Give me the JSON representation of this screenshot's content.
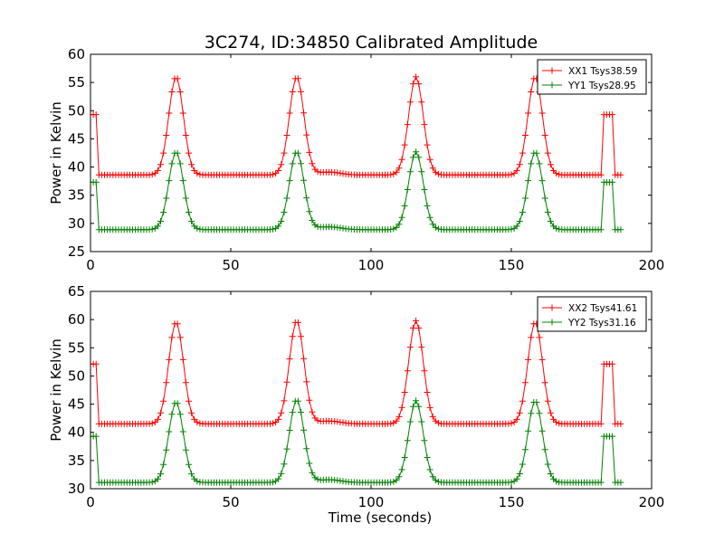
{
  "title": "3C274, ID:34850 Calibrated Amplitude",
  "xlabel": "Time (seconds)",
  "chart_data": [
    {
      "type": "line",
      "title": "3C274, ID:34850 Calibrated Amplitude",
      "xlabel": "",
      "ylabel": "Power in Kelvin",
      "xlim": [
        0,
        200
      ],
      "ylim": [
        25,
        60
      ],
      "xticks": [
        0,
        50,
        100,
        150,
        200
      ],
      "yticks": [
        25,
        30,
        35,
        40,
        45,
        50,
        55,
        60
      ],
      "grid": false,
      "legend": "top-right",
      "series": [
        {
          "name": "XX1 Tsys38.59",
          "color": "#ff0000",
          "marker": "+",
          "baseline": 38.6,
          "peaks": [
            {
              "x": 30.5,
              "y": 56.0
            },
            {
              "x": 73.5,
              "y": 56.0
            },
            {
              "x": 116.0,
              "y": 56.0
            },
            {
              "x": 158.5,
              "y": 56.0
            }
          ],
          "bump": {
            "x": 85,
            "y": 39.1
          },
          "plateaus": [
            {
              "x0": 0,
              "x1": 2.5,
              "y": 49.3
            },
            {
              "x0": 183,
              "x1": 186,
              "y": 49.3
            }
          ],
          "x_end": 189
        },
        {
          "name": "YY1 Tsys28.95",
          "color": "#008000",
          "marker": "+",
          "baseline": 28.9,
          "peaks": [
            {
              "x": 30.5,
              "y": 42.7
            },
            {
              "x": 73.5,
              "y": 42.7
            },
            {
              "x": 116.0,
              "y": 42.7
            },
            {
              "x": 158.5,
              "y": 42.7
            }
          ],
          "bump": {
            "x": 85,
            "y": 29.4
          },
          "plateaus": [
            {
              "x0": 0,
              "x1": 2.5,
              "y": 37.3
            },
            {
              "x0": 183,
              "x1": 186,
              "y": 37.3
            }
          ],
          "x_end": 189
        }
      ]
    },
    {
      "type": "line",
      "xlabel": "Time (seconds)",
      "ylabel": "Power in Kelvin",
      "xlim": [
        0,
        200
      ],
      "ylim": [
        30,
        65
      ],
      "xticks": [
        0,
        50,
        100,
        150,
        200
      ],
      "yticks": [
        30,
        35,
        40,
        45,
        50,
        55,
        60,
        65
      ],
      "grid": false,
      "legend": "top-right",
      "series": [
        {
          "name": "XX2 Tsys41.61",
          "color": "#ff0000",
          "marker": "+",
          "baseline": 41.5,
          "peaks": [
            {
              "x": 30.5,
              "y": 59.6
            },
            {
              "x": 73.5,
              "y": 59.8
            },
            {
              "x": 116.0,
              "y": 59.8
            },
            {
              "x": 158.5,
              "y": 59.6
            }
          ],
          "bump": {
            "x": 85,
            "y": 42.0
          },
          "plateaus": [
            {
              "x0": 0,
              "x1": 2.5,
              "y": 52.1
            },
            {
              "x0": 183,
              "x1": 186,
              "y": 52.1
            }
          ],
          "x_end": 189
        },
        {
          "name": "YY2 Tsys31.16",
          "color": "#008000",
          "marker": "+",
          "baseline": 31.1,
          "peaks": [
            {
              "x": 30.5,
              "y": 45.4
            },
            {
              "x": 73.5,
              "y": 45.8
            },
            {
              "x": 116.0,
              "y": 45.6
            },
            {
              "x": 158.5,
              "y": 45.6
            }
          ],
          "bump": {
            "x": 85,
            "y": 31.6
          },
          "plateaus": [
            {
              "x0": 0,
              "x1": 2.5,
              "y": 39.3
            },
            {
              "x0": 183,
              "x1": 186,
              "y": 39.3
            }
          ],
          "x_end": 189
        }
      ]
    }
  ]
}
